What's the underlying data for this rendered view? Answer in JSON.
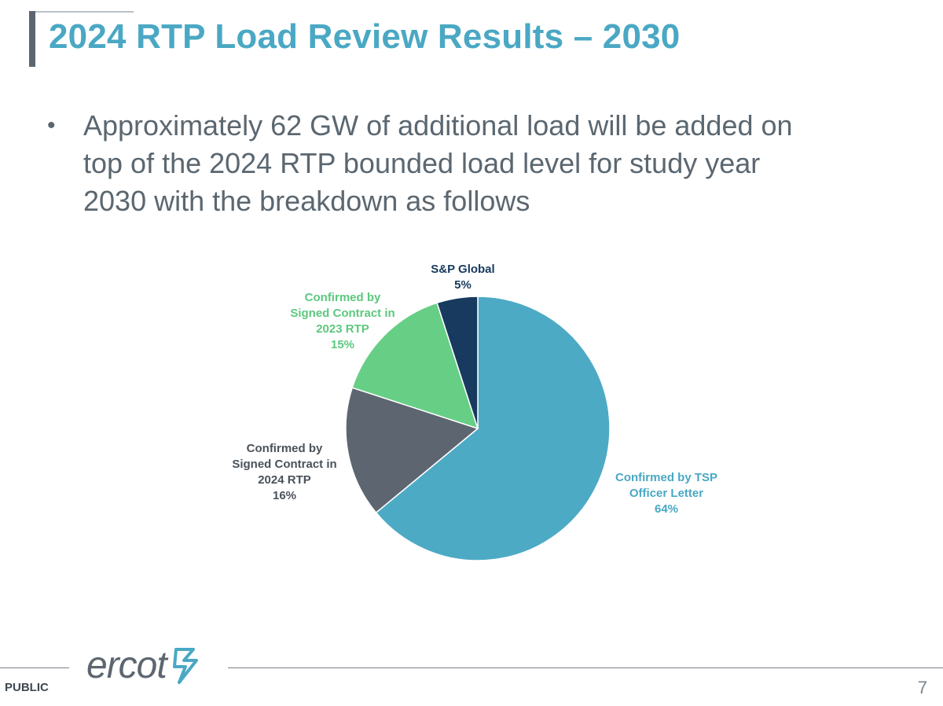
{
  "slide": {
    "title": "2024 RTP Load Review Results – 2030",
    "bullets": [
      {
        "lines": [
          "Approximately 62 GW of additional load will be added on",
          "top of the 2024 RTP bounded load level for study year",
          "2030 with the breakdown as follows"
        ]
      }
    ]
  },
  "chart_data": {
    "type": "pie",
    "title": "",
    "start_angle_deg": 0,
    "direction": "clockwise",
    "slices": [
      {
        "label_lines": [
          "Confirmed by TSP",
          "Officer Letter"
        ],
        "value": 64,
        "value_label": "64%",
        "color": "#4daac5",
        "label_color": "#4aa8c4"
      },
      {
        "label_lines": [
          "Confirmed by",
          "Signed Contract in",
          "2024 RTP"
        ],
        "value": 16,
        "value_label": "16%",
        "color": "#5d6670",
        "label_color": "#4a525a"
      },
      {
        "label_lines": [
          "Confirmed by",
          "Signed Contract in",
          "2023 RTP"
        ],
        "value": 15,
        "value_label": "15%",
        "color": "#66cf85",
        "label_color": "#5cc87e"
      },
      {
        "label_lines": [
          "S&P Global"
        ],
        "value": 5,
        "value_label": "5%",
        "color": "#173a5e",
        "label_color": "#173a5e"
      }
    ]
  },
  "footer": {
    "logo_text": "ercot",
    "classification": "PUBLIC",
    "page_number": "7"
  },
  "colors": {
    "accent": "#4aa8c4",
    "text": "#5b6770",
    "title_bar": "#5d6670"
  }
}
